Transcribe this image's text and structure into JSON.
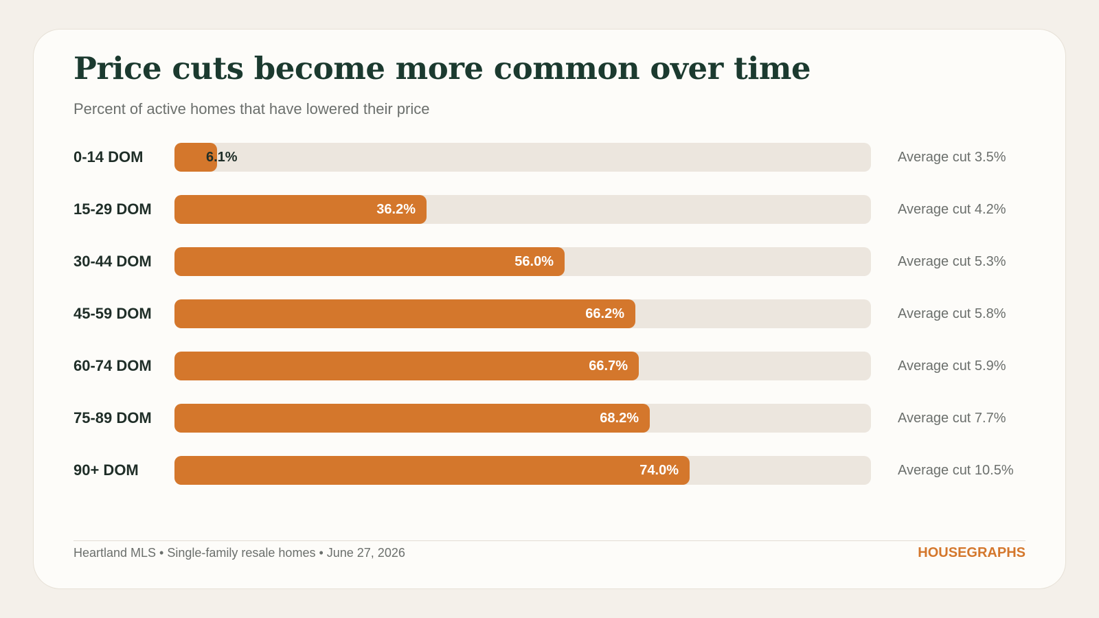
{
  "chart_data": {
    "type": "bar",
    "orientation": "horizontal",
    "title": "Price cuts become more common over time",
    "subtitle": "Percent of active homes that have lowered their price",
    "categories": [
      "0-14 DOM",
      "15-29 DOM",
      "30-44 DOM",
      "45-59 DOM",
      "60-74 DOM",
      "75-89 DOM",
      "90+ DOM"
    ],
    "values": [
      6.1,
      36.2,
      56.0,
      66.2,
      66.7,
      68.2,
      74.0
    ],
    "value_labels": [
      "6.1%",
      "36.2%",
      "56.0%",
      "66.2%",
      "66.7%",
      "68.2%",
      "74.0%"
    ],
    "notes": [
      "Average cut 3.5%",
      "Average cut 4.2%",
      "Average cut 5.3%",
      "Average cut 5.8%",
      "Average cut 5.9%",
      "Average cut 7.7%",
      "Average cut 10.5%"
    ],
    "xlim": [
      0,
      100
    ],
    "grid": false,
    "legend": "none",
    "colors": {
      "bar": "#d4772c",
      "track": "#ece6de"
    }
  },
  "footer": {
    "source": "Heartland MLS • Single-family resale homes • June 27, 2026",
    "brand": "HOUSEGRAPHS"
  }
}
